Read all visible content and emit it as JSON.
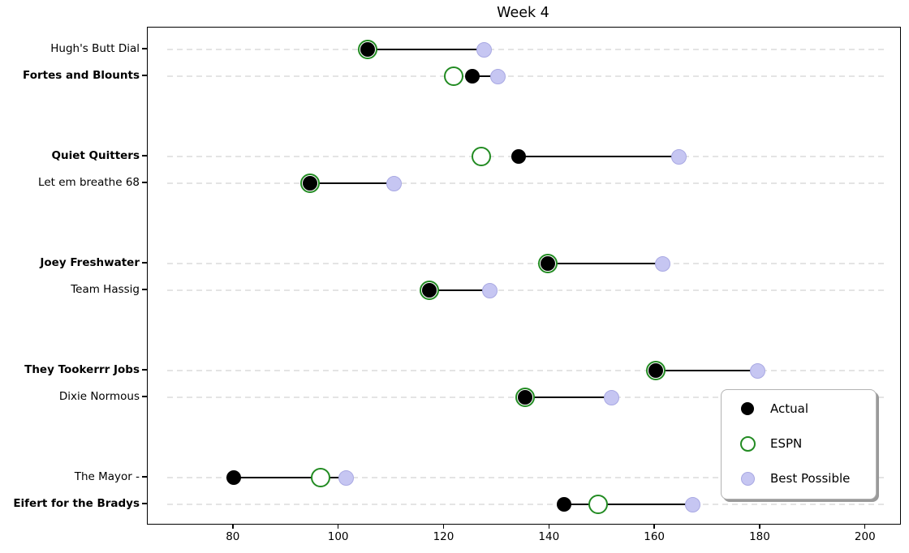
{
  "chart_data": {
    "type": "scatter",
    "subtype": "dumbbell",
    "title": "Week 4",
    "xlabel": "",
    "ylabel": "",
    "xlim": [
      63.7,
      206.5
    ],
    "xticks": [
      80,
      100,
      120,
      140,
      160,
      180,
      200
    ],
    "grid": "horizontal-dashed",
    "series": [
      {
        "name": "Actual",
        "marker": "filled-circle",
        "color": "#000000"
      },
      {
        "name": "ESPN",
        "marker": "open-circle",
        "color": "#228B22"
      },
      {
        "name": "Best Possible",
        "marker": "filled-circle",
        "color": "#c6c6f2",
        "edge_color": "#a9a9e3"
      }
    ],
    "legend": {
      "position": "lower right",
      "entries": [
        {
          "label": "Actual",
          "marker": "filled-black-circle"
        },
        {
          "label": "ESPN",
          "marker": "open-green-circle"
        },
        {
          "label": "Best Possible",
          "marker": "filled-lavender-circle"
        }
      ]
    },
    "teams": [
      {
        "name": "Hugh's Butt Dial",
        "bold": false,
        "actual": 105.5,
        "espn": 105.5,
        "best_possible": 127.6
      },
      {
        "name": "Fortes and Blounts",
        "bold": true,
        "actual": 125.3,
        "espn": 121.8,
        "best_possible": 130.2
      },
      {
        "name": "Quiet Quitters",
        "bold": true,
        "actual": 134.1,
        "espn": 127.0,
        "best_possible": 164.5
      },
      {
        "name": "Let em breathe 68",
        "bold": false,
        "actual": 94.5,
        "espn": 94.5,
        "best_possible": 110.4
      },
      {
        "name": "Joey Freshwater",
        "bold": true,
        "actual": 139.7,
        "espn": 139.7,
        "best_possible": 161.4
      },
      {
        "name": "Team Hassig",
        "bold": false,
        "actual": 117.1,
        "espn": 117.1,
        "best_possible": 128.7
      },
      {
        "name": "They Tookerrr Jobs",
        "bold": true,
        "actual": 160.2,
        "espn": 160.2,
        "best_possible": 179.4
      },
      {
        "name": "Dixie Normous",
        "bold": false,
        "actual": 135.4,
        "espn": 135.4,
        "best_possible": 151.8
      },
      {
        "name": "The Mayor -",
        "bold": false,
        "actual": 80.1,
        "espn": 96.5,
        "best_possible": 101.4
      },
      {
        "name": "Eifert for the Bradys",
        "bold": true,
        "actual": 142.8,
        "espn": 149.2,
        "best_possible": 167.1
      }
    ],
    "colors": {
      "actual": "#000000",
      "espn": "#228B22",
      "best_possible_fill": "#c6c6f2",
      "best_possible_edge": "#a9a9e3",
      "gridline": "#e4e4e4",
      "spine": "#000000",
      "legend_border": "#b3b3b3"
    }
  }
}
